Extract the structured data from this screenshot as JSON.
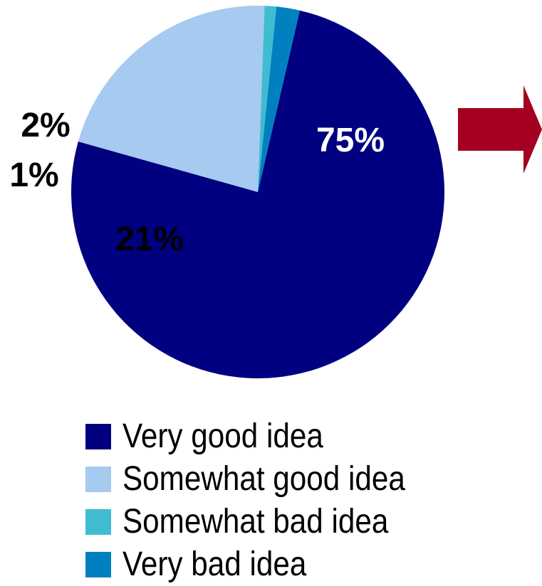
{
  "chart_data": {
    "type": "pie",
    "title": "",
    "slices": [
      {
        "label": "Very good idea",
        "value": 75,
        "display": "75%",
        "color": "#000080",
        "label_color": "#ffffff"
      },
      {
        "label": "Somewhat good idea",
        "value": 21,
        "display": "21%",
        "color": "#a6caf0",
        "label_color": "#000000"
      },
      {
        "label": "Somewhat bad idea",
        "value": 1,
        "display": "1%",
        "color": "#3fbccf",
        "label_color": "#000000"
      },
      {
        "label": "Very bad idea",
        "value": 2,
        "display": "2%",
        "color": "#0080c0",
        "label_color": "#000000"
      }
    ],
    "legend_position": "bottom"
  },
  "arrow": {
    "color": "#a50021",
    "icon": "right-arrow-icon"
  }
}
